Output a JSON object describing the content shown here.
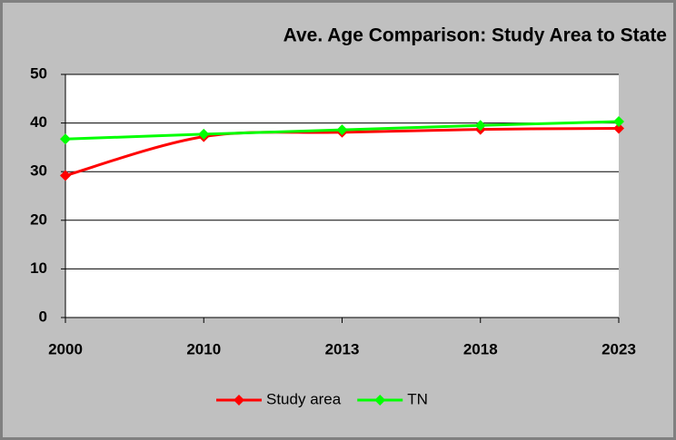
{
  "chart_data": {
    "type": "line",
    "title": "Ave. Age Comparison: Study Area to State",
    "categories": [
      "2000",
      "2010",
      "2013",
      "2018",
      "2023"
    ],
    "series": [
      {
        "name": "Study area",
        "color": "#ff0000",
        "values": [
          29.2,
          37.2,
          38.1,
          38.7,
          38.9
        ]
      },
      {
        "name": "TN",
        "color": "#00ff00",
        "values": [
          36.7,
          37.7,
          38.6,
          39.5,
          40.3
        ]
      }
    ],
    "ylim": [
      0,
      50
    ],
    "yticks": [
      0,
      10,
      20,
      30,
      40,
      50
    ],
    "grid": true,
    "smooth": true,
    "legend": "bottom"
  }
}
